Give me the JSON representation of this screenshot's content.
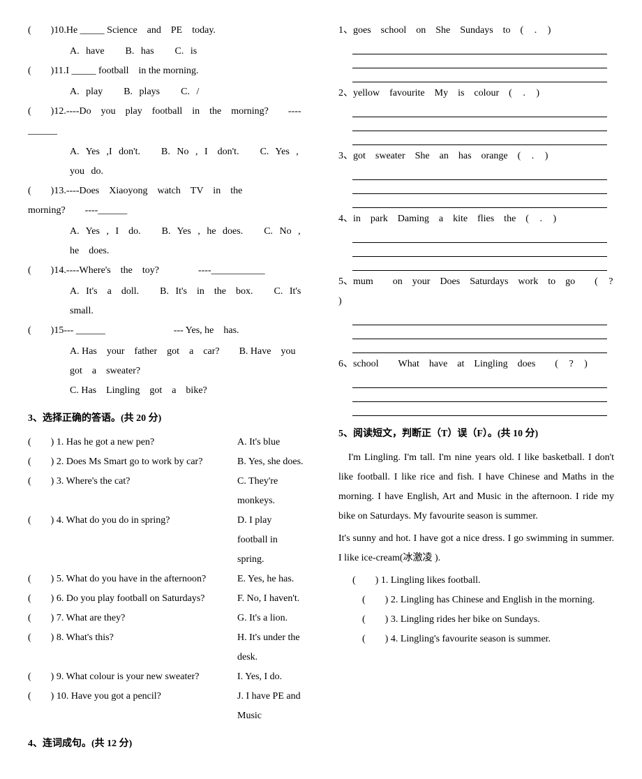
{
  "leftCol": {
    "questions": [
      {
        "num": "10",
        "text": ".He _____ Science　and　PE　today.",
        "choices": [
          "A. have",
          "B. has",
          "C. is"
        ]
      },
      {
        "num": "11",
        "text": ".I _____ football　in the morning.",
        "choices": [
          "A. play",
          "B. plays",
          "C. /"
        ]
      },
      {
        "num": "12",
        "text": ".----Do　you　play　football　in　the　morning?　　----______",
        "choices": [
          "A. Yes ,I don't.",
          "B. No , I　don't.",
          "C. Yes , you do."
        ]
      },
      {
        "num": "13",
        "text": ".----Does　Xiaoyong　watch　TV　in　the　morning?　　----______",
        "choices": [
          "A. Yes , I　do.",
          "B. Yes , he does.",
          "C. No , he　does."
        ]
      },
      {
        "num": "14",
        "text": ".----Where's　the　toy?　　　　----___________",
        "choices": [
          "A. It's　a　doll.",
          "B. It's　in　the　box.",
          "C. It's　small."
        ]
      },
      {
        "num": "15",
        "text": "--- ______　　　　　　　--- Yes, he　has.",
        "choices": [
          "A. Has　your　father　got　a　car?",
          "B. Have　you got　a　sweater?",
          "C. Has　Lingling　got　a　bike?"
        ]
      }
    ],
    "section3Title": "3、选择正确的答语。(共 20 分)",
    "matches": [
      {
        "num": "1",
        "q": "Has he got a new pen?",
        "a": "A. It's blue"
      },
      {
        "num": "2",
        "q": "Does Ms Smart go to work by car?",
        "a": "B. Yes, she does."
      },
      {
        "num": "3",
        "q": "Where's the cat?",
        "a": "C. They're monkeys."
      },
      {
        "num": "4",
        "q": "What do you do in spring?",
        "a": "D. I play football in spring."
      },
      {
        "num": "5",
        "q": "What do you have in the afternoon?",
        "a": "E. Yes, he has."
      },
      {
        "num": "6",
        "q": "Do you play football on Saturdays?",
        "a": "F. No, I haven't."
      },
      {
        "num": "7",
        "q": "What are they?",
        "a": "G. It's a lion."
      },
      {
        "num": "8",
        "q": "What's this?",
        "a": "H. It's under the desk."
      },
      {
        "num": "9",
        "q": "What colour is your new sweater?",
        "a": "I. Yes, I do."
      },
      {
        "num": "10",
        "q": "Have you got a pencil?",
        "a": "J. I have PE and Music"
      }
    ],
    "section4Title": "4、连词成句。(共 12 分)"
  },
  "rightCol": {
    "sentences": [
      {
        "num": "1",
        "words": "goes　school　on　She　Sundays　to　( . )"
      },
      {
        "num": "2",
        "words": "yellow　favourite　My　is　colour　( . )"
      },
      {
        "num": "3",
        "words": "got　sweater　She　an　has　orange　( . )"
      },
      {
        "num": "4",
        "words": "in　park　Daming　a　kite　flies　the　( . )"
      },
      {
        "num": "5",
        "words": "mum　　on　your　Does　Saturdays　work　to　go　　( ? )"
      },
      {
        "num": "6",
        "words": "school　　What　have　at　Lingling　does　　( ? )"
      }
    ],
    "section5Title": "5、阅读短文，判断正（T）误（F）。(共 10 分)",
    "passage1": "I'm Lingling. I'm tall. I'm nine years old. I like basketball. I don't like football. I like rice and fish. I have Chinese and Maths in the morning. I have English, Art and Music in the afternoon. I ride my bike on Saturdays. My favourite season is summer.",
    "passage2": "It's sunny and hot. I have got a nice dress. I go swimming in summer. I like ice-cream(冰激凌 ).",
    "readingQs": [
      {
        "num": "1",
        "text": "Lingling likes football."
      },
      {
        "num": "2",
        "text": "Lingling has Chinese and English in the morning."
      },
      {
        "num": "3",
        "text": "Lingling rides her bike on Sundays."
      },
      {
        "num": "4",
        "text": "Lingling's favourite season is summer."
      }
    ]
  }
}
